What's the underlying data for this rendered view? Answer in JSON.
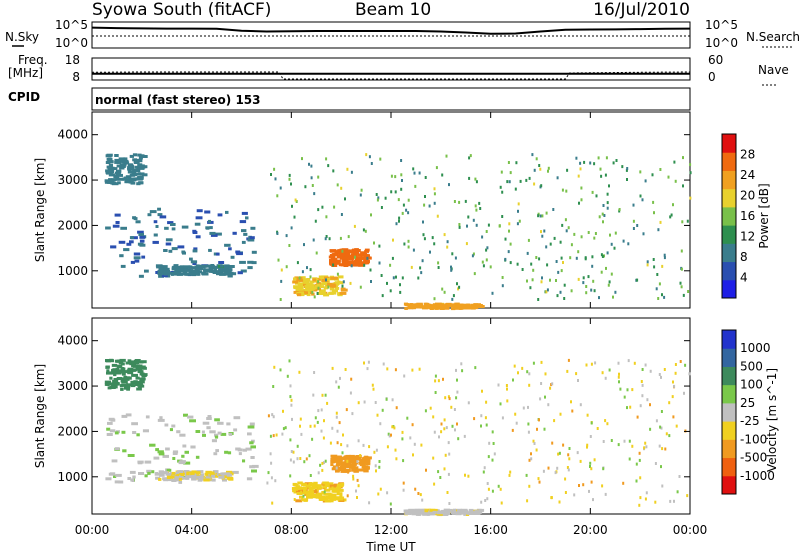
{
  "header": {
    "station": "Syowa South (fitACF)",
    "beam": "Beam 10",
    "date": "16/Jul/2010"
  },
  "noise_panel": {
    "left_label": "N.Sky",
    "right_label": "N.Search",
    "left_ticks": [
      "10^5",
      "10^0"
    ],
    "right_ticks": [
      "10^5",
      "10^0"
    ]
  },
  "freq_panel": {
    "left_label": "Freq.",
    "left_unit": "[MHz]",
    "right_label": "Nave",
    "left_ticks": [
      "18",
      "8"
    ],
    "right_ticks": [
      "60",
      "0"
    ],
    "cpid_label": "CPID",
    "mode": "normal (fast stereo) 153"
  },
  "colors": {
    "power_scale": [
      "#1f1fe6",
      "#2a4fb0",
      "#3a7d8c",
      "#2e8f4f",
      "#79c04a",
      "#e8d12e",
      "#f0a020",
      "#ef6a10",
      "#e01010"
    ],
    "velocity_scale": [
      "#2233cc",
      "#3366a0",
      "#3d8a5c",
      "#7ac84a",
      "#c0c0c0",
      "#f0d020",
      "#f09a20",
      "#ef6010",
      "#e01010"
    ]
  },
  "chart_data": [
    {
      "type": "line",
      "title": "Syowa South (fitACF)",
      "xlabel": "",
      "ylabel": "N.Sky",
      "xlim": [
        "00:00",
        "24:00"
      ],
      "y_scale": "log",
      "ylim": [
        1,
        100000
      ],
      "series": [
        {
          "name": "N.Sky",
          "x": [
            "00:00",
            "01:00",
            "02:00",
            "03:00",
            "04:00",
            "05:00",
            "06:00",
            "07:00",
            "08:00",
            "09:00",
            "10:00",
            "11:00",
            "12:00",
            "13:00",
            "14:00",
            "15:00",
            "16:00",
            "17:00",
            "18:00",
            "19:00",
            "20:00",
            "21:00",
            "22:00",
            "23:00",
            "24:00"
          ],
          "values": [
            15000,
            12000,
            10000,
            9000,
            9000,
            8500,
            3000,
            2000,
            2200,
            2500,
            2500,
            2500,
            2500,
            2500,
            2000,
            1200,
            600,
            700,
            2000,
            5000,
            5500,
            6000,
            7000,
            8000,
            9000
          ]
        }
      ]
    },
    {
      "type": "line",
      "xlabel": "",
      "ylabel": "Freq. [MHz]",
      "xlim": [
        "00:00",
        "24:00"
      ],
      "ylim": [
        8,
        18
      ],
      "y2lim": [
        0,
        60
      ],
      "series": [
        {
          "name": "Freq.",
          "x": [
            "00:00",
            "04:00",
            "08:00",
            "12:00",
            "16:00",
            "20:00",
            "24:00"
          ],
          "values": [
            10.6,
            10.6,
            10.6,
            10.6,
            10.6,
            10.6,
            10.6
          ]
        },
        {
          "name": "Nave",
          "x": [
            "00:00",
            "02:00",
            "05:00",
            "07:30",
            "07:40",
            "19:00",
            "19:10",
            "22:00",
            "24:00"
          ],
          "values": [
            20,
            21,
            21,
            21,
            0,
            0,
            18,
            20,
            21
          ]
        }
      ]
    },
    {
      "type": "heatmap",
      "title": "",
      "xlabel": "",
      "ylabel": "Slant Range [km]",
      "xlim": [
        "00:00",
        "24:00"
      ],
      "ylim": [
        180,
        4500
      ],
      "y_ticks": [
        "1000",
        "2000",
        "3000",
        "4000"
      ],
      "colorbar_label": "Power [dB]",
      "colorbar_ticks": [
        "4",
        "8",
        "12",
        "16",
        "20",
        "24",
        "28"
      ],
      "clim": [
        0,
        30
      ],
      "regions": [
        {
          "t0": 0.5,
          "t1": 2.0,
          "r0": 2950,
          "r1": 3600,
          "level": 8
        },
        {
          "t0": 0.5,
          "t1": 6.5,
          "r0": 900,
          "r1": 2400,
          "level": 6
        },
        {
          "t0": 2.5,
          "t1": 5.5,
          "r0": 950,
          "r1": 1150,
          "level": 8
        },
        {
          "t0": 9.5,
          "t1": 11.0,
          "r0": 1150,
          "r1": 1500,
          "level": 26
        },
        {
          "t0": 8.0,
          "t1": 10.0,
          "r0": 500,
          "r1": 900,
          "level": 20
        },
        {
          "t0": 12.5,
          "t1": 15.5,
          "r0": 200,
          "r1": 300,
          "level": 22
        },
        {
          "t0": 7.0,
          "t1": 24.0,
          "r0": 400,
          "r1": 3600,
          "level": 12
        }
      ]
    },
    {
      "type": "heatmap",
      "title": "",
      "xlabel": "Time UT",
      "ylabel": "Slant Range [km]",
      "x_ticks": [
        "00:00",
        "04:00",
        "08:00",
        "12:00",
        "16:00",
        "20:00",
        "00:00"
      ],
      "xlim": [
        "00:00",
        "24:00"
      ],
      "ylim": [
        180,
        4500
      ],
      "y_ticks": [
        "1000",
        "2000",
        "3000",
        "4000"
      ],
      "colorbar_label": "Velocity [m s^-1]",
      "colorbar_ticks": [
        "1000",
        "500",
        "100",
        "25",
        "-25",
        "-100",
        "-500",
        "-1000"
      ],
      "clim": [
        -1000,
        1000
      ],
      "regions": [
        {
          "t0": 0.5,
          "t1": 2.0,
          "r0": 2950,
          "r1": 3600,
          "level": 500
        },
        {
          "t0": 0.5,
          "t1": 6.5,
          "r0": 900,
          "r1": 2400,
          "level": 100
        },
        {
          "t0": 2.5,
          "t1": 5.5,
          "r0": 950,
          "r1": 1150,
          "level": -100
        },
        {
          "t0": 9.5,
          "t1": 11.0,
          "r0": 1150,
          "r1": 1500,
          "level": -500
        },
        {
          "t0": 8.0,
          "t1": 10.0,
          "r0": 500,
          "r1": 900,
          "level": -300
        },
        {
          "t0": 12.5,
          "t1": 15.5,
          "r0": 200,
          "r1": 300,
          "level": -50
        },
        {
          "t0": 7.0,
          "t1": 24.0,
          "r0": 400,
          "r1": 3600,
          "level": -100
        }
      ]
    }
  ]
}
